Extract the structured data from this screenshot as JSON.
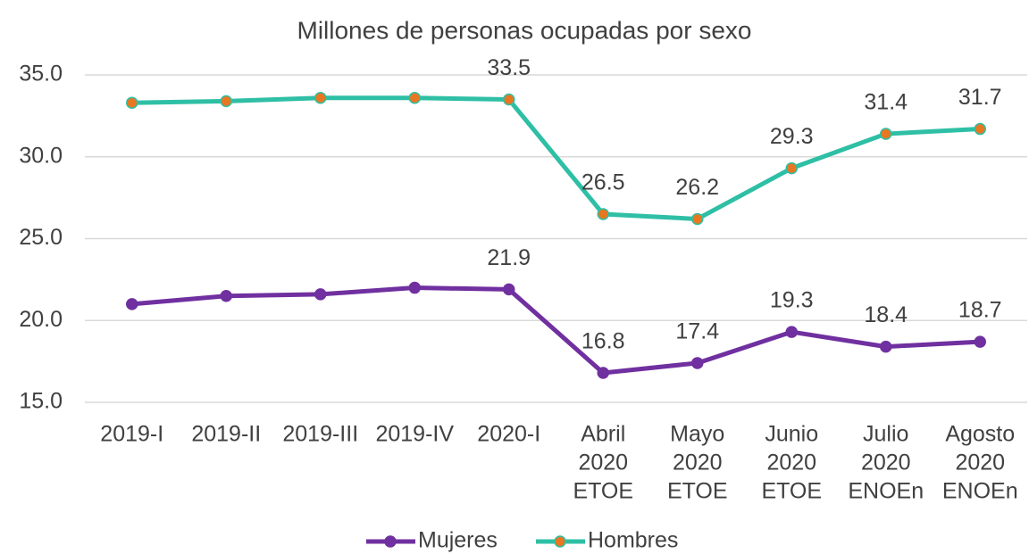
{
  "chart_data": {
    "type": "line",
    "title": "Millones de personas ocupadas por sexo",
    "categories": [
      [
        "2019-I"
      ],
      [
        "2019-II"
      ],
      [
        "2019-III"
      ],
      [
        "2019-IV"
      ],
      [
        "2020-I"
      ],
      [
        "Abril",
        "2020",
        "ETOE"
      ],
      [
        "Mayo",
        "2020",
        "ETOE"
      ],
      [
        "Junio",
        "2020",
        "ETOE"
      ],
      [
        "Julio",
        "2020",
        "ENOEn"
      ],
      [
        "Agosto",
        "2020",
        "ENOEn"
      ]
    ],
    "series": [
      {
        "name": "Mujeres",
        "color": "#7030a0",
        "marker_color": "#7030a0",
        "values": [
          21.0,
          21.5,
          21.6,
          22.0,
          21.9,
          16.8,
          17.4,
          19.3,
          18.4,
          18.7
        ],
        "value_labels": [
          null,
          null,
          null,
          null,
          "21.9",
          "16.8",
          "17.4",
          "19.3",
          "18.4",
          "18.7"
        ]
      },
      {
        "name": "Hombres",
        "color": "#2ebfa5",
        "marker_color": "#e87722",
        "values": [
          33.3,
          33.4,
          33.6,
          33.6,
          33.5,
          26.5,
          26.2,
          29.3,
          31.4,
          31.7
        ],
        "value_labels": [
          null,
          null,
          null,
          null,
          "33.5",
          "26.5",
          "26.2",
          "29.3",
          "31.4",
          "31.7"
        ]
      }
    ],
    "ylim": [
      15,
      35
    ],
    "yticks": [
      {
        "value": 15,
        "label": "15.0"
      },
      {
        "value": 20,
        "label": "20.0"
      },
      {
        "value": 25,
        "label": "25.0"
      },
      {
        "value": 30,
        "label": "30.0"
      },
      {
        "value": 35,
        "label": "35.0"
      }
    ],
    "grid": true,
    "legend": "bottom"
  }
}
